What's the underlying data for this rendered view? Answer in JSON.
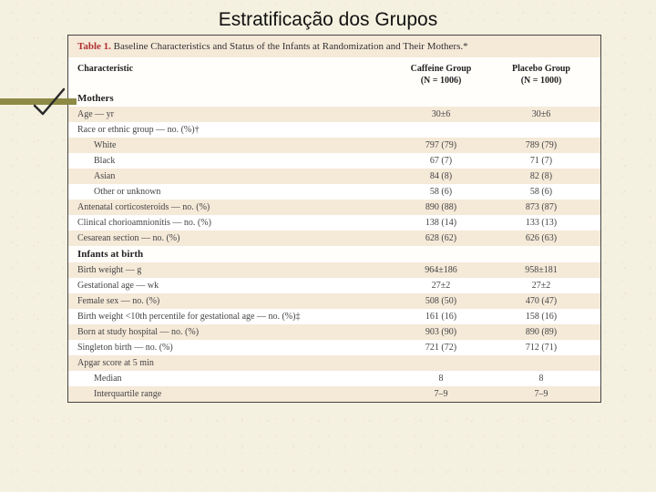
{
  "slide": {
    "title": "Estratificação dos Grupos"
  },
  "table": {
    "header_label": "Table 1.",
    "header_desc": "Baseline Characteristics and Status of the Infants at Randomization and Their Mothers.*",
    "col_characteristic": "Characteristic",
    "col_caffeine_l1": "Caffeine Group",
    "col_caffeine_l2": "(N = 1006)",
    "col_placebo_l1": "Placebo Group",
    "col_placebo_l2": "(N = 1000)",
    "section_mothers": "Mothers",
    "rows_mothers": [
      {
        "label": "Age — yr",
        "c": "30±6",
        "p": "30±6"
      },
      {
        "label": "Race or ethnic group — no. (%)†",
        "c": "",
        "p": ""
      },
      {
        "label": "White",
        "indent": 1,
        "c": "797 (79)",
        "p": "789 (79)"
      },
      {
        "label": "Black",
        "indent": 1,
        "c": "67 (7)",
        "p": "71 (7)"
      },
      {
        "label": "Asian",
        "indent": 1,
        "c": "84 (8)",
        "p": "82 (8)"
      },
      {
        "label": "Other or unknown",
        "indent": 1,
        "c": "58 (6)",
        "p": "58 (6)"
      },
      {
        "label": "Antenatal corticosteroids — no. (%)",
        "c": "890 (88)",
        "p": "873 (87)"
      },
      {
        "label": "Clinical chorioamnionitis — no. (%)",
        "c": "138 (14)",
        "p": "133 (13)"
      },
      {
        "label": "Cesarean section — no. (%)",
        "c": "628 (62)",
        "p": "626 (63)"
      }
    ],
    "section_infants": "Infants at birth",
    "rows_infants": [
      {
        "label": "Birth weight — g",
        "c": "964±186",
        "p": "958±181"
      },
      {
        "label": "Gestational age — wk",
        "c": "27±2",
        "p": "27±2"
      },
      {
        "label": "Female sex — no. (%)",
        "c": "508 (50)",
        "p": "470 (47)"
      },
      {
        "label": "Birth weight <10th percentile for gestational age — no. (%)‡",
        "c": "161 (16)",
        "p": "158 (16)"
      },
      {
        "label": "Born at study hospital — no. (%)",
        "c": "903 (90)",
        "p": "890 (89)"
      },
      {
        "label": "Singleton birth — no. (%)",
        "c": "721 (72)",
        "p": "712 (71)"
      },
      {
        "label": "Apgar score at 5 min",
        "c": "",
        "p": ""
      },
      {
        "label": "Median",
        "indent": 1,
        "c": "8",
        "p": "8"
      },
      {
        "label": "Interquartile range",
        "indent": 1,
        "c": "7–9",
        "p": "7–9"
      }
    ]
  },
  "colors": {
    "accent": "#8d8a45",
    "header_red": "#b03030",
    "band": "#f5e9d8"
  }
}
